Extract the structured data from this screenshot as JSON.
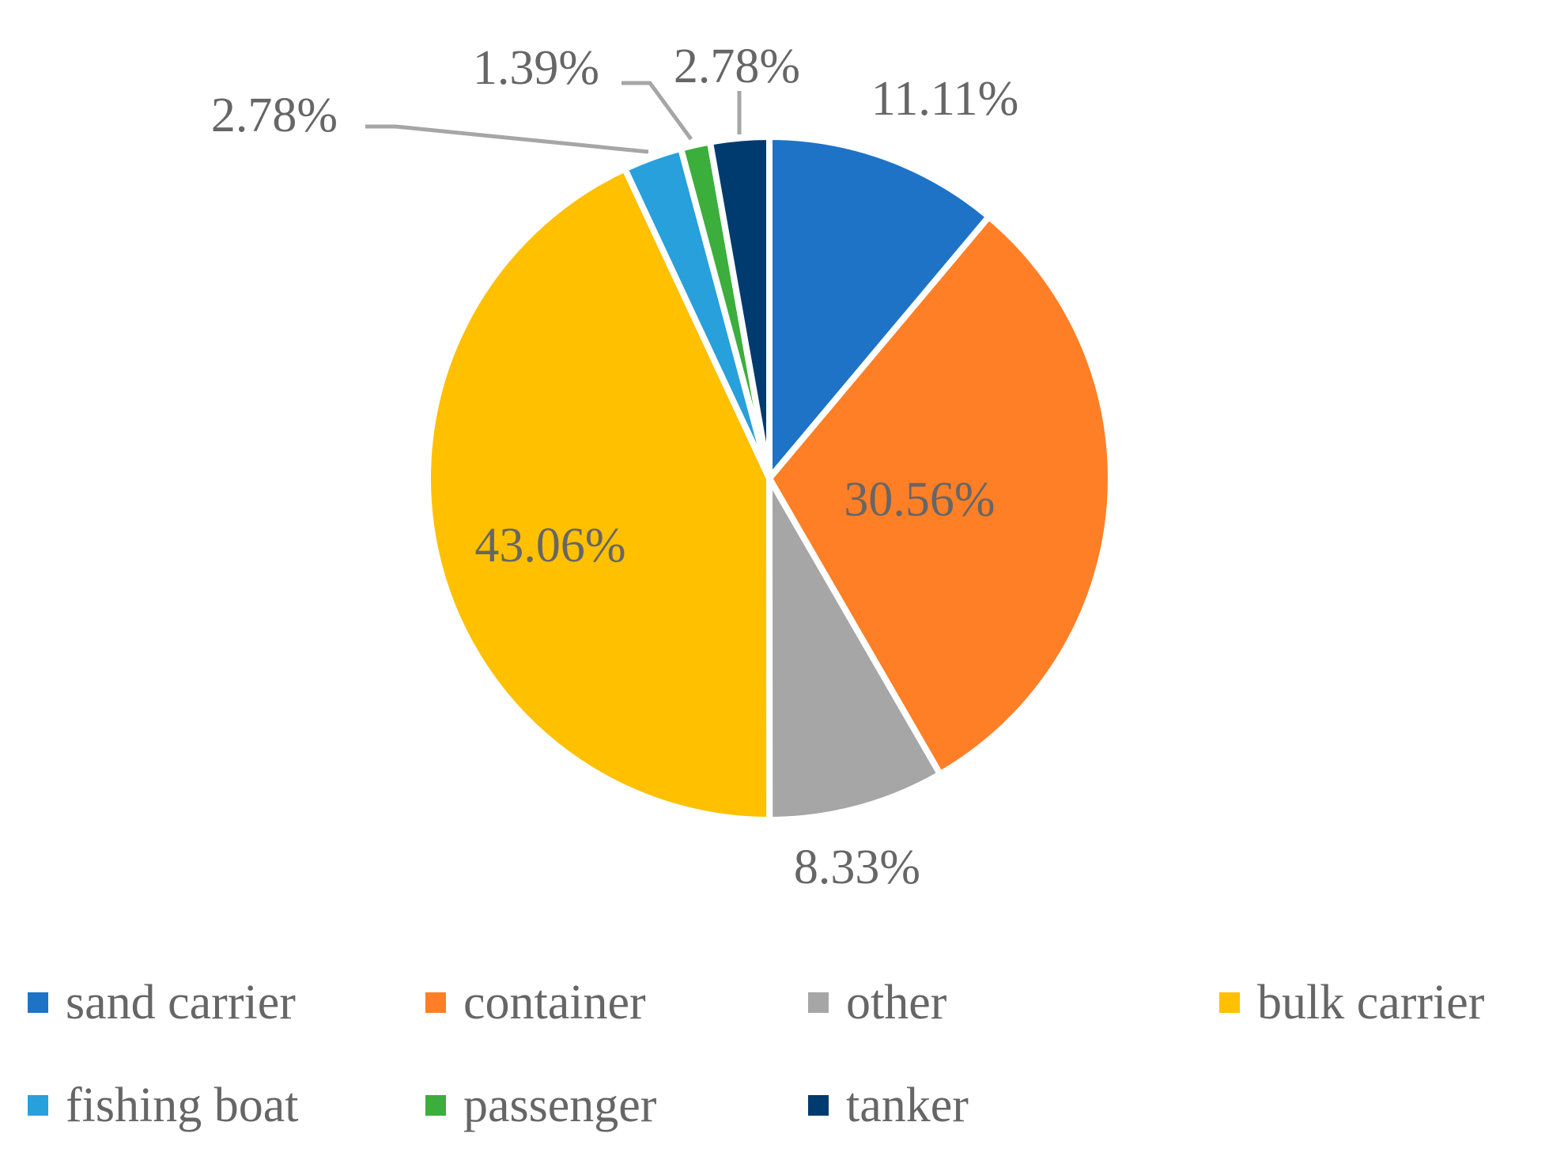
{
  "chart_data": {
    "type": "pie",
    "title": "",
    "start_angle_deg": 0,
    "direction": "clockwise",
    "categories": [
      "sand carrier",
      "container",
      "other",
      "bulk carrier",
      "fishing boat",
      "passenger",
      "tanker"
    ],
    "values": [
      11.11,
      30.56,
      8.33,
      43.06,
      2.78,
      1.39,
      2.78
    ],
    "labels": [
      "11.11%",
      "30.56%",
      "8.33%",
      "43.06%",
      "2.78%",
      "1.39%",
      "2.78%"
    ],
    "colors": [
      "#1f73c6",
      "#ff7f27",
      "#a6a6a6",
      "#ffc000",
      "#27a0dc",
      "#3cae3c",
      "#003b6f"
    ],
    "label_placement": [
      "outside",
      "inside",
      "outside",
      "inside",
      "outside-with-leader",
      "outside-with-leader",
      "outside-with-leader"
    ],
    "legend": {
      "position": "bottom",
      "items": [
        "sand carrier",
        "container",
        "other",
        "bulk carrier",
        "fishing boat",
        "passenger",
        "tanker"
      ]
    },
    "label_color": "#666666",
    "leader_line_color": "#a6a6a6"
  }
}
